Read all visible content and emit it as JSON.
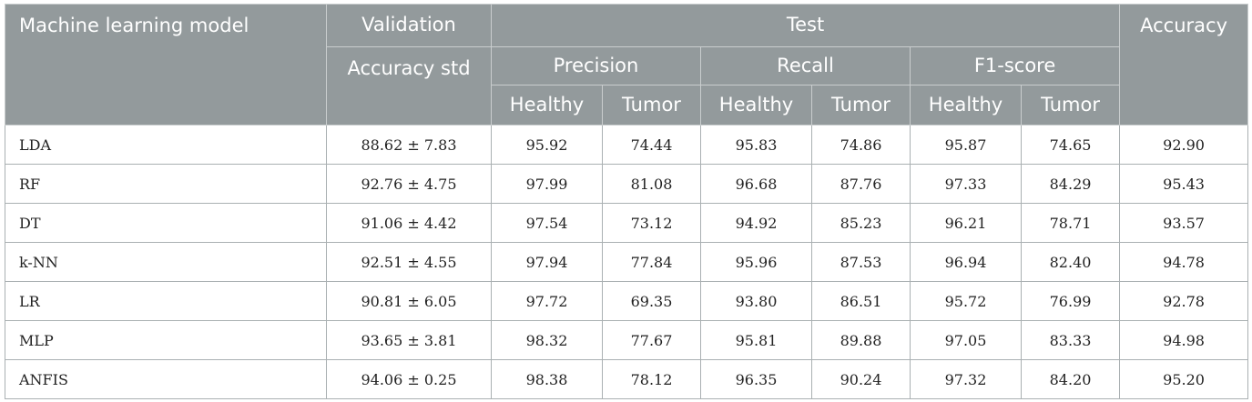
{
  "header": {
    "model_col": "Machine learning model",
    "validation": "Validation",
    "validation_sub": "Accuracy std",
    "test": "Test",
    "accuracy": "Accuracy",
    "precision": "Precision",
    "recall": "Recall",
    "f1": "F1-score",
    "healthy": "Healthy",
    "tumor": "Tumor"
  },
  "rows": [
    {
      "model": "LDA",
      "val": "88.62 ± 7.83",
      "p_h": "95.92",
      "p_t": "74.44",
      "r_h": "95.83",
      "r_t": "74.86",
      "f_h": "95.87",
      "f_t": "74.65",
      "acc": "92.90"
    },
    {
      "model": "RF",
      "val": "92.76 ± 4.75",
      "p_h": "97.99",
      "p_t": "81.08",
      "r_h": "96.68",
      "r_t": "87.76",
      "f_h": "97.33",
      "f_t": "84.29",
      "acc": "95.43"
    },
    {
      "model": "DT",
      "val": "91.06 ± 4.42",
      "p_h": "97.54",
      "p_t": "73.12",
      "r_h": "94.92",
      "r_t": "85.23",
      "f_h": "96.21",
      "f_t": "78.71",
      "acc": "93.57"
    },
    {
      "model": "k-NN",
      "val": "92.51 ± 4.55",
      "p_h": "97.94",
      "p_t": "77.84",
      "r_h": "95.96",
      "r_t": "87.53",
      "f_h": "96.94",
      "f_t": "82.40",
      "acc": "94.78"
    },
    {
      "model": "LR",
      "val": "90.81 ± 6.05",
      "p_h": "97.72",
      "p_t": "69.35",
      "r_h": "93.80",
      "r_t": "86.51",
      "f_h": "95.72",
      "f_t": "76.99",
      "acc": "92.78"
    },
    {
      "model": "MLP",
      "val": "93.65 ± 3.81",
      "p_h": "98.32",
      "p_t": "77.67",
      "r_h": "95.81",
      "r_t": "89.88",
      "f_h": "97.05",
      "f_t": "83.33",
      "acc": "94.98"
    },
    {
      "model": "ANFIS",
      "val": "94.06 ± 0.25",
      "p_h": "98.38",
      "p_t": "78.12",
      "r_h": "96.35",
      "r_t": "90.24",
      "f_h": "97.32",
      "f_t": "84.20",
      "acc": "95.20"
    }
  ],
  "colors": {
    "header_bg": "#939a9c",
    "header_text": "#ffffff",
    "body_text": "#222222",
    "grid": "#aab0b2"
  }
}
